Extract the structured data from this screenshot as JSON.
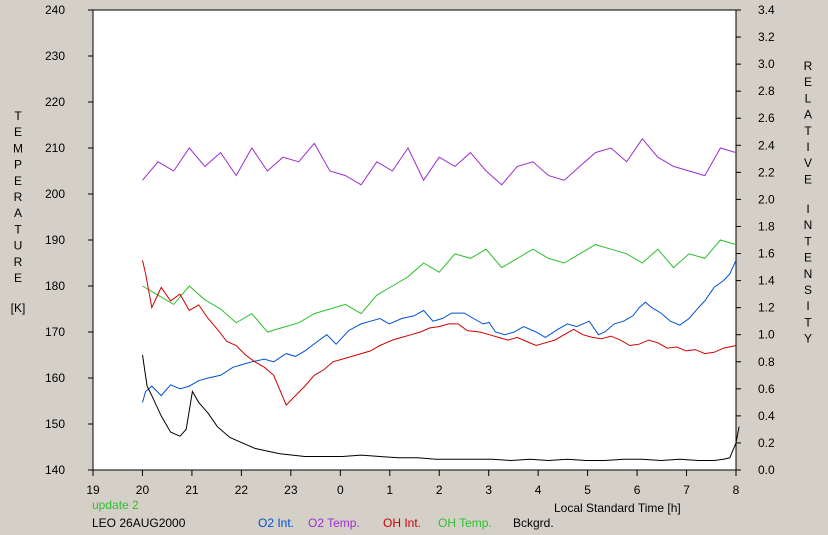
{
  "chart_data": {
    "type": "line",
    "left_axis": {
      "label_letters": [
        "T",
        "E",
        "M",
        "P",
        "E",
        "R",
        "A",
        "T",
        "U",
        "R",
        "E"
      ],
      "unit": "[K]",
      "ylim": [
        140,
        240
      ],
      "ticks": [
        "140",
        "150",
        "160",
        "170",
        "180",
        "190",
        "200",
        "210",
        "220",
        "230",
        "240"
      ]
    },
    "right_axis": {
      "label_word1": [
        "R",
        "E",
        "L",
        "A",
        "T",
        "I",
        "V",
        "E"
      ],
      "label_word2": [
        "I",
        "N",
        "T",
        "E",
        "N",
        "S",
        "I",
        "T",
        "Y"
      ],
      "ylim": [
        0.0,
        3.4
      ],
      "ticks": [
        "0.0",
        "0.2",
        "0.4",
        "0.6",
        "0.8",
        "1.0",
        "1.2",
        "1.4",
        "1.6",
        "1.8",
        "2.0",
        "2.2",
        "2.4",
        "2.6",
        "2.8",
        "3.0",
        "3.2",
        "3.4"
      ]
    },
    "x_axis": {
      "label": "Local Standard Time [h]",
      "ticks": [
        "19",
        "20",
        "21",
        "22",
        "23",
        "0",
        "1",
        "2",
        "3",
        "4",
        "5",
        "6",
        "7",
        "8"
      ]
    },
    "update_text": "update 2",
    "station_text": "LEO 26AUG2000",
    "series": [
      {
        "name": "O2 Int.",
        "axis": "right",
        "color": "#0050d0",
        "x": [
          0,
          0.1,
          0.3,
          0.6,
          0.9,
          1.2,
          1.5,
          1.8,
          2.1,
          2.5,
          2.9,
          3.2,
          3.5,
          3.9,
          4.2,
          4.6,
          4.9,
          5.2,
          5.6,
          5.9,
          6.2,
          6.6,
          7.0,
          7.3,
          7.6,
          7.9,
          8.3,
          8.7,
          9.0,
          9.3,
          9.6,
          9.9,
          10.3,
          10.6,
          10.9,
          11.1,
          11.3,
          11.6,
          11.9,
          12.2,
          12.6,
          12.9,
          13.3,
          13.6,
          13.9,
          14.3,
          14.6,
          14.8,
          15.1,
          15.4,
          15.7,
          15.9,
          16.1,
          16.3,
          16.6,
          16.9,
          17.2,
          17.5,
          17.8,
          18.0,
          18.3,
          18.6,
          18.8,
          19.0
        ],
        "y": [
          0.5,
          0.58,
          0.62,
          0.55,
          0.63,
          0.6,
          0.62,
          0.66,
          0.68,
          0.7,
          0.76,
          0.78,
          0.8,
          0.82,
          0.8,
          0.86,
          0.84,
          0.88,
          0.95,
          1.0,
          0.93,
          1.03,
          1.08,
          1.1,
          1.12,
          1.08,
          1.12,
          1.14,
          1.18,
          1.1,
          1.12,
          1.16,
          1.16,
          1.12,
          1.08,
          1.09,
          1.02,
          1.0,
          1.02,
          1.06,
          1.02,
          0.98,
          1.04,
          1.08,
          1.06,
          1.1,
          1.0,
          1.02,
          1.08,
          1.1,
          1.14,
          1.2,
          1.24,
          1.2,
          1.16,
          1.1,
          1.07,
          1.12,
          1.2,
          1.25,
          1.35,
          1.4,
          1.45,
          1.55
        ]
      },
      {
        "name": "O2 Temp.",
        "axis": "left",
        "color": "#9b2fd0",
        "x": [
          0,
          0.5,
          1,
          1.5,
          2,
          2.5,
          3,
          3.5,
          4,
          4.5,
          5,
          5.5,
          6,
          6.5,
          7,
          7.5,
          8,
          8.5,
          9,
          9.5,
          10,
          10.5,
          11,
          11.5,
          12,
          12.5,
          13,
          13.5,
          14,
          14.5,
          15,
          15.5,
          16,
          16.5,
          17,
          17.5,
          18,
          18.5,
          19
        ],
        "y": [
          203,
          207,
          205,
          210,
          206,
          209,
          204,
          210,
          205,
          208,
          207,
          211,
          205,
          204,
          202,
          207,
          205,
          210,
          203,
          208,
          206,
          209,
          205,
          202,
          206,
          207,
          204,
          203,
          206,
          209,
          210,
          207,
          212,
          208,
          206,
          205,
          204,
          210,
          209
        ]
      },
      {
        "name": "OH Int.",
        "axis": "right",
        "color": "#d00000",
        "x": [
          0,
          0.1,
          0.3,
          0.6,
          0.9,
          1.2,
          1.5,
          1.8,
          2.1,
          2.4,
          2.7,
          3.0,
          3.3,
          3.6,
          3.9,
          4.2,
          4.6,
          4.9,
          5.2,
          5.5,
          5.8,
          6.1,
          6.4,
          6.7,
          7.0,
          7.3,
          7.6,
          8.0,
          8.3,
          8.6,
          8.9,
          9.2,
          9.5,
          9.8,
          10.1,
          10.4,
          10.8,
          11.1,
          11.4,
          11.7,
          12.0,
          12.3,
          12.6,
          12.9,
          13.2,
          13.5,
          13.8,
          14.1,
          14.4,
          14.7,
          15.0,
          15.3,
          15.6,
          15.9,
          16.2,
          16.5,
          16.8,
          17.1,
          17.4,
          17.7,
          18.0,
          18.3,
          18.6,
          19.0
        ],
        "y": [
          1.55,
          1.45,
          1.2,
          1.35,
          1.25,
          1.3,
          1.18,
          1.22,
          1.12,
          1.04,
          0.95,
          0.92,
          0.85,
          0.8,
          0.76,
          0.7,
          0.48,
          0.55,
          0.62,
          0.7,
          0.74,
          0.8,
          0.82,
          0.84,
          0.86,
          0.88,
          0.92,
          0.96,
          0.98,
          1.0,
          1.02,
          1.05,
          1.06,
          1.08,
          1.08,
          1.03,
          1.02,
          1.0,
          0.98,
          0.96,
          0.98,
          0.95,
          0.92,
          0.94,
          0.96,
          1.0,
          1.04,
          1.0,
          0.98,
          0.97,
          0.99,
          0.96,
          0.92,
          0.93,
          0.96,
          0.94,
          0.9,
          0.91,
          0.88,
          0.89,
          0.86,
          0.87,
          0.9,
          0.92
        ]
      },
      {
        "name": "OH Temp.",
        "axis": "left",
        "color": "#2ec02e",
        "x": [
          0,
          0.5,
          1,
          1.5,
          2,
          2.5,
          3,
          3.5,
          4,
          4.5,
          5,
          5.5,
          6,
          6.5,
          7,
          7.5,
          8,
          8.5,
          9,
          9.5,
          10,
          10.5,
          11,
          11.5,
          12,
          12.5,
          13,
          13.5,
          14,
          14.5,
          15,
          15.5,
          16,
          16.5,
          17,
          17.5,
          18,
          18.5,
          19
        ],
        "y": [
          180,
          178,
          176,
          180,
          177,
          175,
          172,
          174,
          170,
          171,
          172,
          174,
          175,
          176,
          174,
          178,
          180,
          182,
          185,
          183,
          187,
          186,
          188,
          184,
          186,
          188,
          186,
          185,
          187,
          189,
          188,
          187,
          185,
          188,
          184,
          187,
          186,
          190,
          189
        ]
      },
      {
        "name": "Bckgrd.",
        "axis": "right",
        "color": "#000000",
        "x": [
          0,
          0.15,
          0.3,
          0.6,
          0.9,
          1.2,
          1.4,
          1.6,
          1.8,
          2.1,
          2.4,
          2.8,
          3.2,
          3.6,
          4.0,
          4.4,
          4.8,
          5.2,
          5.8,
          6.4,
          7.0,
          7.6,
          8.2,
          8.8,
          9.4,
          10.0,
          10.6,
          11.2,
          11.8,
          12.4,
          13.0,
          13.6,
          14.2,
          14.8,
          15.4,
          16.0,
          16.6,
          17.2,
          17.8,
          18.3,
          18.6,
          18.8,
          19.0,
          19.1
        ],
        "y": [
          0.85,
          0.62,
          0.55,
          0.4,
          0.28,
          0.25,
          0.3,
          0.58,
          0.5,
          0.42,
          0.32,
          0.24,
          0.2,
          0.16,
          0.14,
          0.12,
          0.11,
          0.1,
          0.1,
          0.1,
          0.11,
          0.1,
          0.09,
          0.09,
          0.08,
          0.08,
          0.08,
          0.08,
          0.07,
          0.08,
          0.07,
          0.08,
          0.07,
          0.07,
          0.08,
          0.08,
          0.07,
          0.08,
          0.07,
          0.07,
          0.08,
          0.09,
          0.2,
          0.32
        ]
      }
    ]
  }
}
